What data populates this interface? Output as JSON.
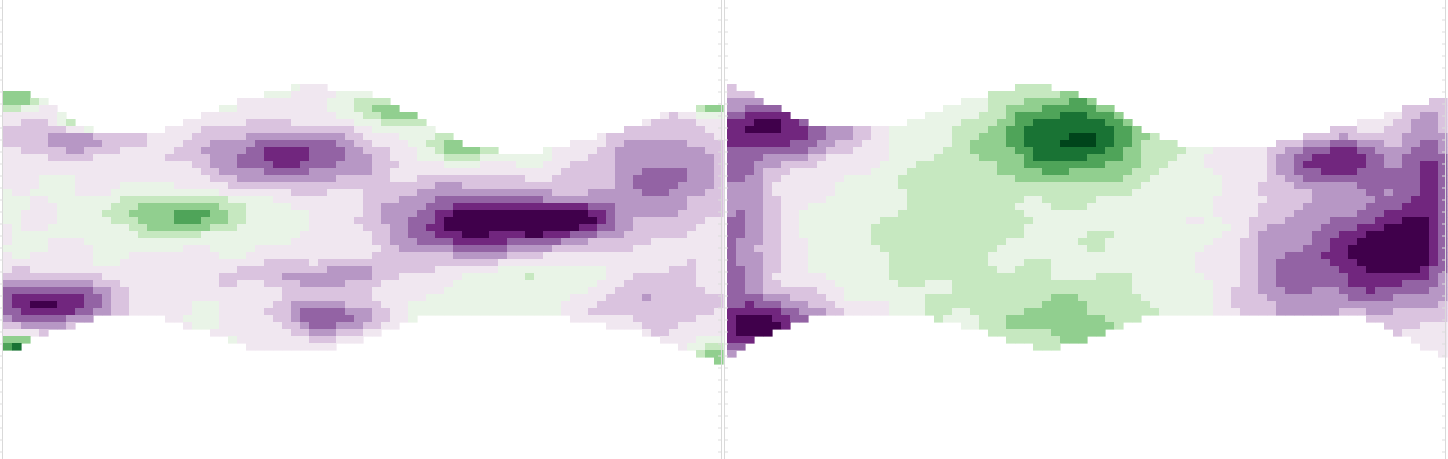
{
  "figure": {
    "panel_count": 2,
    "colormap": "PRGn",
    "colormap_stops": [
      "#40004b",
      "#762a83",
      "#9970ab",
      "#c2a5cf",
      "#e7d4e8",
      "#f7f7f7",
      "#d9f0d3",
      "#a6dba0",
      "#5aae61",
      "#1b7837",
      "#00441b"
    ]
  },
  "chart_data": [
    {
      "type": "heatmap",
      "name": "panel-left",
      "title": "",
      "xlabel": "",
      "ylabel": "",
      "x_range": [
        0,
        1
      ],
      "y_range": [
        0,
        1
      ],
      "z_range": [
        -1,
        1
      ],
      "contour_levels": 12,
      "colormap": "PRGn",
      "grid": false,
      "legend": "none",
      "domain_profile": [
        [
          0.0,
          0.19,
          0.77
        ],
        [
          0.05,
          0.21,
          0.73
        ],
        [
          0.1,
          0.27,
          0.71
        ],
        [
          0.15,
          0.29,
          0.68
        ],
        [
          0.2,
          0.29,
          0.68
        ],
        [
          0.25,
          0.27,
          0.71
        ],
        [
          0.3,
          0.24,
          0.73
        ],
        [
          0.35,
          0.21,
          0.76
        ],
        [
          0.4,
          0.19,
          0.77
        ],
        [
          0.45,
          0.19,
          0.76
        ],
        [
          0.5,
          0.2,
          0.74
        ],
        [
          0.55,
          0.23,
          0.71
        ],
        [
          0.6,
          0.28,
          0.68
        ],
        [
          0.65,
          0.32,
          0.68
        ],
        [
          0.7,
          0.33,
          0.68
        ],
        [
          0.75,
          0.33,
          0.68
        ],
        [
          0.8,
          0.31,
          0.7
        ],
        [
          0.85,
          0.29,
          0.71
        ],
        [
          0.9,
          0.26,
          0.73
        ],
        [
          0.95,
          0.24,
          0.76
        ],
        [
          1.0,
          0.22,
          0.79
        ]
      ],
      "features": [
        {
          "x": 0.4,
          "y": 0.34,
          "sx": 0.09,
          "sy": 0.045,
          "z": -0.8
        },
        {
          "x": 0.66,
          "y": 0.49,
          "sx": 0.09,
          "sy": 0.06,
          "z": -1.0
        },
        {
          "x": 0.79,
          "y": 0.48,
          "sx": 0.05,
          "sy": 0.03,
          "z": -0.7
        },
        {
          "x": 0.06,
          "y": 0.66,
          "sx": 0.07,
          "sy": 0.04,
          "z": -0.95
        },
        {
          "x": 0.45,
          "y": 0.69,
          "sx": 0.05,
          "sy": 0.03,
          "z": -0.7
        },
        {
          "x": 0.45,
          "y": 0.6,
          "sx": 0.1,
          "sy": 0.025,
          "z": -0.45
        },
        {
          "x": 0.09,
          "y": 0.3,
          "sx": 0.07,
          "sy": 0.035,
          "z": -0.45
        },
        {
          "x": 0.92,
          "y": 0.38,
          "sx": 0.07,
          "sy": 0.08,
          "z": -0.6
        },
        {
          "x": 0.9,
          "y": 0.64,
          "sx": 0.07,
          "sy": 0.06,
          "z": -0.4
        },
        {
          "x": 0.25,
          "y": 0.47,
          "sx": 0.07,
          "sy": 0.03,
          "z": 0.6
        },
        {
          "x": 0.56,
          "y": 0.24,
          "sx": 0.05,
          "sy": 0.025,
          "z": 0.6
        },
        {
          "x": 0.65,
          "y": 0.32,
          "sx": 0.06,
          "sy": 0.025,
          "z": 0.45
        },
        {
          "x": 0.12,
          "y": 0.26,
          "sx": 0.03,
          "sy": 0.015,
          "z": 1.0
        },
        {
          "x": 0.02,
          "y": 0.21,
          "sx": 0.025,
          "sy": 0.02,
          "z": 0.5
        },
        {
          "x": 0.99,
          "y": 0.22,
          "sx": 0.02,
          "sy": 0.02,
          "z": 0.9
        },
        {
          "x": 0.02,
          "y": 0.76,
          "sx": 0.025,
          "sy": 0.02,
          "z": 0.85
        },
        {
          "x": 0.73,
          "y": 0.6,
          "sx": 0.13,
          "sy": 0.04,
          "z": 0.3
        },
        {
          "x": 0.99,
          "y": 0.78,
          "sx": 0.015,
          "sy": 0.02,
          "z": 0.6
        }
      ]
    },
    {
      "type": "heatmap",
      "name": "panel-right",
      "title": "",
      "xlabel": "",
      "ylabel": "",
      "x_range": [
        0,
        1
      ],
      "y_range": [
        0,
        1
      ],
      "z_range": [
        -1,
        1
      ],
      "contour_levels": 12,
      "colormap": "PRGn",
      "grid": false,
      "legend": "none",
      "domain_profile": [
        [
          0.0,
          0.18,
          0.78
        ],
        [
          0.05,
          0.22,
          0.73
        ],
        [
          0.1,
          0.26,
          0.7
        ],
        [
          0.15,
          0.28,
          0.68
        ],
        [
          0.2,
          0.28,
          0.68
        ],
        [
          0.25,
          0.27,
          0.68
        ],
        [
          0.3,
          0.24,
          0.7
        ],
        [
          0.35,
          0.21,
          0.72
        ],
        [
          0.4,
          0.19,
          0.75
        ],
        [
          0.45,
          0.19,
          0.76
        ],
        [
          0.5,
          0.21,
          0.74
        ],
        [
          0.55,
          0.25,
          0.71
        ],
        [
          0.6,
          0.3,
          0.68
        ],
        [
          0.65,
          0.32,
          0.68
        ],
        [
          0.7,
          0.32,
          0.68
        ],
        [
          0.75,
          0.32,
          0.68
        ],
        [
          0.8,
          0.3,
          0.68
        ],
        [
          0.85,
          0.28,
          0.68
        ],
        [
          0.9,
          0.26,
          0.7
        ],
        [
          0.95,
          0.23,
          0.74
        ],
        [
          1.0,
          0.21,
          0.78
        ]
      ],
      "features": [
        {
          "x": 0.48,
          "y": 0.3,
          "sx": 0.08,
          "sy": 0.07,
          "z": 0.95
        },
        {
          "x": 0.48,
          "y": 0.7,
          "sx": 0.09,
          "sy": 0.06,
          "z": 0.45
        },
        {
          "x": 0.3,
          "y": 0.5,
          "sx": 0.08,
          "sy": 0.13,
          "z": 0.3
        },
        {
          "x": 0.55,
          "y": 0.52,
          "sx": 0.08,
          "sy": 0.06,
          "z": 0.15
        },
        {
          "x": 0.07,
          "y": 0.28,
          "sx": 0.08,
          "sy": 0.05,
          "z": -0.85
        },
        {
          "x": 0.06,
          "y": 0.72,
          "sx": 0.07,
          "sy": 0.05,
          "z": -0.9
        },
        {
          "x": 0.85,
          "y": 0.35,
          "sx": 0.06,
          "sy": 0.04,
          "z": -0.8
        },
        {
          "x": 0.91,
          "y": 0.55,
          "sx": 0.06,
          "sy": 0.09,
          "z": -1.0
        },
        {
          "x": 0.98,
          "y": 0.4,
          "sx": 0.03,
          "sy": 0.15,
          "z": -0.6
        },
        {
          "x": 0.78,
          "y": 0.6,
          "sx": 0.05,
          "sy": 0.12,
          "z": -0.5
        },
        {
          "x": 0.01,
          "y": 0.5,
          "sx": 0.04,
          "sy": 0.15,
          "z": -0.6
        }
      ]
    }
  ]
}
